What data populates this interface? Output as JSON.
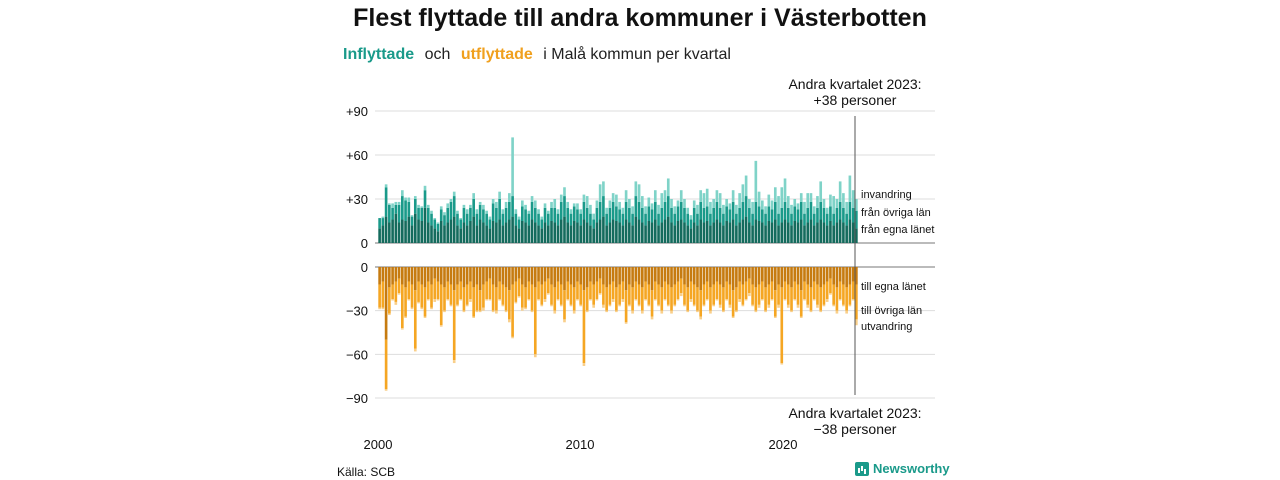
{
  "title": "Flest flyttade till andra kommuner i Västerbotten",
  "subtitle": {
    "in_label": "Inflyttade",
    "and": "och",
    "out_label": "utflyttade",
    "rest": "i Malå  kommun  per  kvartal"
  },
  "annotation_top": {
    "line1": "Andra kvartalet 2023:",
    "line2": "+38 personer"
  },
  "annotation_bottom": {
    "line1": "Andra kvartalet 2023:",
    "line2": "−38 personer"
  },
  "source": "Källa: SCB",
  "logo": "Newsworthy",
  "colors": {
    "in_lan": "#146b5d",
    "in_ovriga": "#1a9a8a",
    "in_invandring": "#7fd3c8",
    "out_lan": "#c67b10",
    "out_ovriga": "#f5a623",
    "out_utvandring": "#f9cf8a"
  },
  "chart_data": [
    {
      "type": "bar",
      "stacked": true,
      "title": "Inflyttade",
      "y_tick_labels": [
        "0",
        "+30",
        "+60",
        "+90"
      ],
      "y_ticks": [
        0,
        30,
        60,
        90
      ],
      "ylim": [
        0,
        95
      ],
      "x_tick_labels": [
        "2000",
        "2010",
        "2020"
      ],
      "x_start": 2000.0,
      "x_step": 0.25,
      "grid": true,
      "series": [
        {
          "name": "från egna länet",
          "values": [
            10,
            12,
            18,
            14,
            16,
            20,
            14,
            16,
            15,
            18,
            12,
            20,
            16,
            15,
            24,
            14,
            12,
            10,
            8,
            15,
            12,
            14,
            16,
            18,
            12,
            10,
            14,
            12,
            15,
            18,
            12,
            16,
            14,
            12,
            10,
            15,
            14,
            16,
            12,
            14,
            16,
            18,
            12,
            10,
            15,
            14,
            12,
            16,
            14,
            12,
            10,
            14,
            12,
            15,
            14,
            12,
            16,
            18,
            14,
            12,
            15,
            14,
            12,
            16,
            14,
            12,
            10,
            14,
            16,
            18,
            12,
            14,
            16,
            15,
            14,
            12,
            16,
            14,
            12,
            18,
            16,
            14,
            12,
            15,
            14,
            16,
            12,
            14,
            16,
            18,
            14,
            12,
            15,
            16,
            14,
            12,
            10,
            14,
            12,
            16,
            14,
            15,
            12,
            14,
            16,
            14,
            12,
            15,
            14,
            16,
            12,
            14,
            16,
            18,
            14,
            12,
            16,
            15,
            14,
            12,
            15,
            14,
            16,
            12,
            14,
            16,
            14,
            12,
            15,
            14,
            16,
            12,
            14,
            16,
            12,
            14,
            16,
            14,
            12,
            15,
            12,
            14,
            16,
            14,
            12,
            16,
            14,
            10
          ]
        },
        {
          "name": "från övriga län",
          "values": [
            7,
            5,
            20,
            12,
            8,
            6,
            12,
            16,
            14,
            10,
            6,
            10,
            8,
            9,
            12,
            10,
            8,
            6,
            5,
            8,
            7,
            10,
            12,
            14,
            8,
            6,
            10,
            8,
            9,
            12,
            8,
            10,
            9,
            8,
            6,
            12,
            10,
            14,
            8,
            10,
            12,
            14,
            8,
            6,
            10,
            9,
            8,
            12,
            10,
            8,
            6,
            10,
            8,
            9,
            10,
            8,
            12,
            14,
            10,
            8,
            10,
            9,
            8,
            12,
            10,
            8,
            6,
            10,
            12,
            14,
            8,
            10,
            12,
            10,
            9,
            8,
            12,
            10,
            8,
            14,
            12,
            10,
            8,
            10,
            9,
            12,
            8,
            10,
            12,
            14,
            10,
            8,
            10,
            12,
            10,
            8,
            6,
            10,
            8,
            12,
            10,
            10,
            8,
            10,
            12,
            10,
            8,
            10,
            9,
            12,
            8,
            10,
            12,
            14,
            10,
            8,
            12,
            10,
            9,
            8,
            10,
            9,
            12,
            8,
            10,
            12,
            10,
            8,
            10,
            9,
            12,
            8,
            10,
            12,
            8,
            10,
            12,
            10,
            8,
            10,
            8,
            10,
            12,
            10,
            8,
            12,
            10,
            12
          ]
        },
        {
          "name": "invandring",
          "values": [
            0,
            1,
            2,
            1,
            3,
            2,
            2,
            4,
            2,
            3,
            1,
            2,
            2,
            1,
            3,
            2,
            2,
            1,
            1,
            2,
            2,
            3,
            2,
            3,
            2,
            1,
            2,
            3,
            2,
            4,
            3,
            2,
            3,
            2,
            2,
            3,
            4,
            5,
            3,
            4,
            6,
            40,
            3,
            2,
            4,
            3,
            2,
            4,
            5,
            3,
            2,
            3,
            2,
            4,
            6,
            3,
            5,
            6,
            4,
            3,
            2,
            4,
            3,
            5,
            8,
            6,
            4,
            5,
            12,
            10,
            4,
            5,
            6,
            8,
            5,
            4,
            8,
            6,
            5,
            10,
            12,
            8,
            5,
            6,
            4,
            8,
            6,
            10,
            8,
            12,
            6,
            5,
            4,
            8,
            6,
            4,
            3,
            5,
            6,
            8,
            10,
            12,
            8,
            6,
            8,
            10,
            6,
            5,
            4,
            8,
            6,
            10,
            12,
            14,
            6,
            8,
            28,
            10,
            6,
            5,
            8,
            6,
            10,
            12,
            14,
            16,
            8,
            6,
            5,
            4,
            6,
            8,
            10,
            6,
            5,
            8,
            14,
            6,
            4,
            8,
            12,
            6,
            14,
            10,
            8,
            18,
            12,
            8
          ]
        }
      ]
    },
    {
      "type": "bar",
      "stacked": true,
      "title": "Utflyttade",
      "y_tick_labels": [
        "0",
        "−30",
        "−60",
        "−90"
      ],
      "y_ticks": [
        0,
        -30,
        -60,
        -90
      ],
      "ylim": [
        -95,
        0
      ],
      "x_tick_labels": [
        "2000",
        "2010",
        "2020"
      ],
      "grid": true,
      "series": [
        {
          "name": "till egna länet",
          "values": [
            -12,
            -10,
            -50,
            -14,
            -12,
            -10,
            -8,
            -12,
            -14,
            -10,
            -12,
            -16,
            -10,
            -12,
            -14,
            -10,
            -12,
            -8,
            -10,
            -12,
            -14,
            -10,
            -12,
            -16,
            -12,
            -10,
            -14,
            -12,
            -10,
            -14,
            -12,
            -16,
            -12,
            -10,
            -8,
            -12,
            -14,
            -10,
            -12,
            -14,
            -16,
            -12,
            -10,
            -8,
            -12,
            -14,
            -10,
            -12,
            -14,
            -10,
            -12,
            -10,
            -8,
            -12,
            -14,
            -10,
            -12,
            -16,
            -10,
            -12,
            -14,
            -10,
            -12,
            -16,
            -14,
            -10,
            -12,
            -10,
            -8,
            -12,
            -14,
            -12,
            -10,
            -14,
            -12,
            -10,
            -16,
            -12,
            -14,
            -10,
            -12,
            -14,
            -10,
            -12,
            -16,
            -10,
            -12,
            -14,
            -10,
            -12,
            -14,
            -12,
            -10,
            -8,
            -12,
            -14,
            -10,
            -12,
            -14,
            -16,
            -12,
            -10,
            -14,
            -12,
            -10,
            -12,
            -14,
            -10,
            -12,
            -16,
            -14,
            -10,
            -12,
            -10,
            -8,
            -12,
            -14,
            -12,
            -10,
            -14,
            -12,
            -10,
            -16,
            -12,
            -14,
            -10,
            -12,
            -14,
            -10,
            -12,
            -16,
            -10,
            -12,
            -14,
            -10,
            -12,
            -14,
            -12,
            -10,
            -8,
            -12,
            -14,
            -10,
            -12,
            -14,
            -12,
            -10,
            -12
          ]
        },
        {
          "name": "till övriga län",
          "values": [
            -16,
            -18,
            -34,
            -18,
            -10,
            -14,
            -10,
            -30,
            -20,
            -12,
            -16,
            -40,
            -14,
            -16,
            -20,
            -12,
            -16,
            -14,
            -12,
            -28,
            -16,
            -12,
            -14,
            -48,
            -14,
            -12,
            -16,
            -14,
            -12,
            -20,
            -18,
            -14,
            -16,
            -12,
            -14,
            -18,
            -16,
            -12,
            -14,
            -16,
            -20,
            -36,
            -14,
            -12,
            -16,
            -14,
            -12,
            -18,
            -46,
            -12,
            -14,
            -12,
            -10,
            -14,
            -16,
            -12,
            -14,
            -20,
            -12,
            -14,
            -16,
            -12,
            -14,
            -50,
            -16,
            -12,
            -14,
            -12,
            -10,
            -14,
            -16,
            -14,
            -12,
            -16,
            -14,
            -12,
            -22,
            -14,
            -16,
            -12,
            -14,
            -16,
            -12,
            -14,
            -18,
            -12,
            -14,
            -16,
            -12,
            -14,
            -16,
            -14,
            -12,
            -10,
            -14,
            -16,
            -12,
            -14,
            -16,
            -18,
            -14,
            -12,
            -16,
            -14,
            -12,
            -14,
            -16,
            -12,
            -14,
            -18,
            -16,
            -12,
            -14,
            -12,
            -10,
            -14,
            -16,
            -14,
            -12,
            -16,
            -14,
            -12,
            -18,
            -14,
            -52,
            -12,
            -14,
            -16,
            -12,
            -14,
            -18,
            -12,
            -14,
            -16,
            -12,
            -14,
            -16,
            -14,
            -12,
            -10,
            -14,
            -16,
            -12,
            -14,
            -16,
            -14,
            -12,
            -24
          ]
        },
        {
          "name": "utvandring",
          "values": [
            -1,
            -1,
            -1,
            -1,
            -1,
            -2,
            -1,
            -1,
            -1,
            -1,
            -1,
            -2,
            -1,
            -1,
            -1,
            -1,
            -1,
            -2,
            -1,
            -1,
            -1,
            -1,
            -1,
            -2,
            -1,
            -1,
            -1,
            -1,
            -2,
            -1,
            -1,
            -1,
            -2,
            -1,
            -1,
            -1,
            -2,
            -1,
            -1,
            -1,
            -2,
            -1,
            -1,
            -1,
            -2,
            -1,
            -1,
            -1,
            -2,
            -1,
            -1,
            -2,
            -1,
            -1,
            -2,
            -1,
            -1,
            -2,
            -1,
            -1,
            -2,
            -1,
            -1,
            -2,
            -1,
            -1,
            -2,
            -1,
            -1,
            -2,
            -1,
            -1,
            -2,
            -1,
            -1,
            -2,
            -1,
            -1,
            -2,
            -1,
            -1,
            -2,
            -1,
            -1,
            -2,
            -1,
            -1,
            -2,
            -1,
            -1,
            -2,
            -1,
            -1,
            -2,
            -1,
            -1,
            -2,
            -1,
            -1,
            -2,
            -1,
            -1,
            -2,
            -1,
            -1,
            -2,
            -1,
            -1,
            -2,
            -1,
            -1,
            -2,
            -1,
            -1,
            -2,
            -1,
            -1,
            -2,
            -1,
            -1,
            -2,
            -1,
            -1,
            -2,
            -1,
            -1,
            -2,
            -1,
            -1,
            -2,
            -1,
            -1,
            -2,
            -1,
            -1,
            -2,
            -1,
            -1,
            -2,
            -1,
            -1,
            -2,
            -1,
            -1,
            -2,
            -1,
            -1,
            -4
          ]
        }
      ]
    }
  ]
}
